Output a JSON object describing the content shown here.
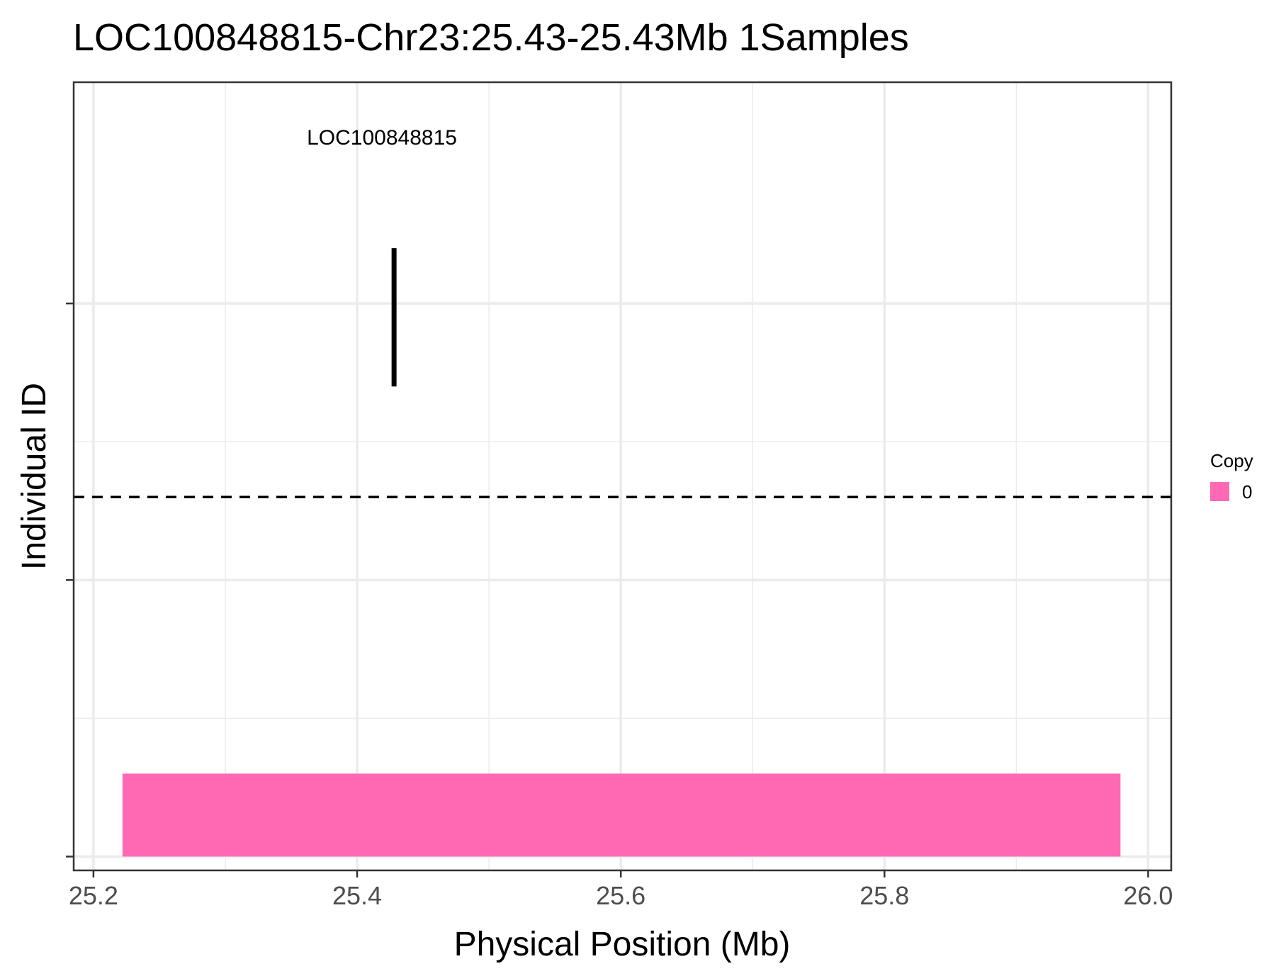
{
  "chart_data": {
    "type": "segment",
    "title": "LOC100848815-Chr23:25.43-25.43Mb 1Samples",
    "xlabel": "Physical Position (Mb)",
    "ylabel": "Individual ID",
    "xlim": [
      25.185,
      26.0175
    ],
    "x_ticks": [
      25.2,
      25.4,
      25.6,
      25.8,
      26.0
    ],
    "x_tick_labels": [
      "25.2",
      "25.4",
      "25.6",
      "25.8",
      "26.0"
    ],
    "ylim": [
      0.95,
      3.8
    ],
    "y_ticks": [
      1,
      2,
      3
    ],
    "y_tick_labels": [
      "",
      "",
      ""
    ],
    "grid": true,
    "gene": {
      "label": "LOC100848815",
      "x": 25.428,
      "y_range": [
        2.7,
        3.2
      ],
      "label_y": 3.6,
      "label_x": 25.4
    },
    "cutoff_line": {
      "y": 2.3,
      "style": "dashed",
      "color": "#000000"
    },
    "segments": [
      {
        "copy": "0",
        "x_start": 25.222,
        "x_end": 25.979,
        "y_start": 1.0,
        "y_end": 1.3
      }
    ],
    "legend": {
      "title": "Copy",
      "position": "right",
      "items": [
        {
          "label": "0",
          "color": "#FF69B4"
        }
      ]
    }
  }
}
